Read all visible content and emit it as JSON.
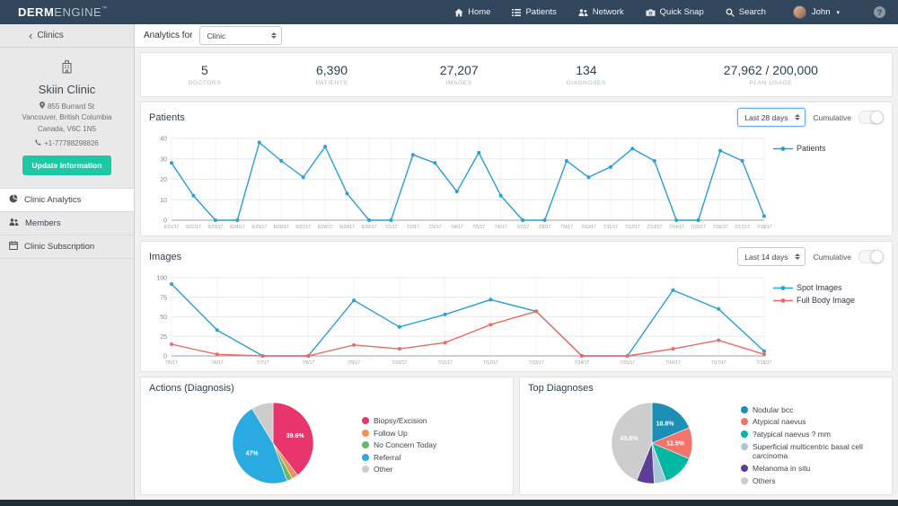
{
  "navbar": {
    "brand": {
      "bold": "DERM",
      "light": "ENGINE",
      "tm": "™"
    },
    "items": [
      {
        "icon": "home-icon",
        "label": "Home"
      },
      {
        "icon": "patients-icon",
        "label": "Patients"
      },
      {
        "icon": "network-icon",
        "label": "Network"
      },
      {
        "icon": "quick-snap-icon",
        "label": "Quick Snap"
      },
      {
        "icon": "search-icon",
        "label": "Search"
      }
    ],
    "user": {
      "name": "John"
    },
    "help_label": "?"
  },
  "sidebar": {
    "back_label": "Clinics",
    "clinic": {
      "name": "Skiin Clinic",
      "address_line1": "855 Burrard St",
      "address_line2": "Vancouver, British Columbia",
      "address_line3": "Canada, V6C 1N5",
      "phone": "+1-77788298826",
      "update_button": "Update Information"
    },
    "menu": [
      {
        "label": "Clinic Analytics",
        "icon": "pie-chart-icon",
        "active": true
      },
      {
        "label": "Members",
        "icon": "users-icon",
        "active": false
      },
      {
        "label": "Clinic Subscription",
        "icon": "calendar-icon",
        "active": false
      }
    ]
  },
  "toolbar": {
    "label": "Analytics for",
    "scope_value": "Clinic"
  },
  "stats": [
    {
      "value": "5",
      "label": "DOCTORS"
    },
    {
      "value": "6,390",
      "label": "PATIENTS"
    },
    {
      "value": "27,207",
      "label": "IMAGES"
    },
    {
      "value": "134",
      "label": "DIAGNOSES"
    },
    {
      "value": "27,962 / 200,000",
      "label": "PLAN USAGE"
    }
  ],
  "panels": {
    "patients": {
      "title": "Patients",
      "range_value": "Last 28 days",
      "cumulative_label": "Cumulative",
      "cumulative_on": false
    },
    "images": {
      "title": "Images",
      "range_value": "Last 14 days",
      "cumulative_label": "Cumulative",
      "cumulative_on": false
    },
    "actions": {
      "title": "Actions (Diagnosis)"
    },
    "top_diagnoses": {
      "title": "Top Diagnoses"
    }
  },
  "chart_data": [
    {
      "id": "patients",
      "type": "line",
      "title": "Patients",
      "xlabel": "",
      "ylabel": "",
      "ylim": [
        0,
        40
      ],
      "yticks": [
        0,
        10,
        20,
        30,
        40
      ],
      "grid": true,
      "legend_position": "right",
      "x": [
        "6/21/17",
        "6/22/17",
        "6/23/17",
        "6/24/17",
        "6/25/17",
        "6/26/17",
        "6/27/17",
        "6/28/17",
        "6/29/17",
        "6/30/17",
        "7/1/17",
        "7/2/17",
        "7/3/17",
        "7/4/17",
        "7/5/17",
        "7/6/17",
        "7/7/17",
        "7/8/17",
        "7/9/17",
        "7/10/17",
        "7/11/17",
        "7/12/17",
        "7/13/17",
        "7/14/17",
        "7/15/17",
        "7/16/17",
        "7/17/17",
        "7/18/17"
      ],
      "series": [
        {
          "name": "Patients",
          "color": "#2a9fd6",
          "values": [
            28,
            12,
            0,
            0,
            38,
            29,
            21,
            36,
            13,
            0,
            0,
            32,
            28,
            14,
            33,
            12,
            0,
            0,
            29,
            21,
            26,
            35,
            29,
            0,
            0,
            34,
            29,
            2
          ]
        }
      ]
    },
    {
      "id": "images",
      "type": "line",
      "title": "Images",
      "xlabel": "",
      "ylabel": "",
      "ylim": [
        0,
        100
      ],
      "yticks": [
        0,
        25,
        50,
        75,
        100
      ],
      "grid": true,
      "legend_position": "right",
      "x": [
        "7/5/17",
        "7/6/17",
        "7/7/17",
        "7/8/17",
        "7/9/17",
        "7/10/17",
        "7/11/17",
        "7/12/17",
        "7/13/17",
        "7/14/17",
        "7/15/17",
        "7/16/17",
        "7/17/17",
        "7/18/17"
      ],
      "series": [
        {
          "name": "Spot Images",
          "color": "#2a9fd6",
          "values": [
            92,
            33,
            0,
            0,
            71,
            37,
            53,
            72,
            57,
            0,
            0,
            84,
            60,
            6
          ]
        },
        {
          "name": "Full Body Image",
          "color": "#ee6a61",
          "values": [
            15,
            2,
            0,
            0,
            14,
            9,
            17,
            40,
            57,
            0,
            0,
            9,
            20,
            2
          ]
        }
      ]
    },
    {
      "id": "actions",
      "type": "pie",
      "title": "Actions (Diagnosis)",
      "legend_position": "right",
      "slices": [
        {
          "label": "Biopsy/Excision",
          "value": 39.6,
          "color": "#e8356d",
          "pct_label": "39.6%"
        },
        {
          "label": "Follow Up",
          "value": 2.5,
          "color": "#f0915a"
        },
        {
          "label": "No Concern Today",
          "value": 2.2,
          "color": "#69b764"
        },
        {
          "label": "Referral",
          "value": 47.0,
          "color": "#29abe2",
          "pct_label": "47%"
        },
        {
          "label": "Other",
          "value": 8.7,
          "color": "#cccccc"
        }
      ]
    },
    {
      "id": "top_diagnoses",
      "type": "pie",
      "title": "Top Diagnoses",
      "legend_position": "right",
      "slices": [
        {
          "label": "Nodular bcc",
          "value": 18.8,
          "color": "#1e8fb4",
          "pct_label": "18.8%"
        },
        {
          "label": "Atypical naevus",
          "value": 12.5,
          "color": "#f3746a",
          "pct_label": "12.5%"
        },
        {
          "label": "?atypical naevus ? mm",
          "value": 13.0,
          "color": "#02b8a2"
        },
        {
          "label": "Superficial multicentric basal cell carcinoma",
          "value": 4.8,
          "color": "#a9c8d7"
        },
        {
          "label": "Melanoma in situ",
          "value": 7.1,
          "color": "#5d3e97"
        },
        {
          "label": "Others",
          "value": 43.8,
          "color": "#cdcdcd",
          "pct_label": "43.8%"
        }
      ]
    }
  ]
}
